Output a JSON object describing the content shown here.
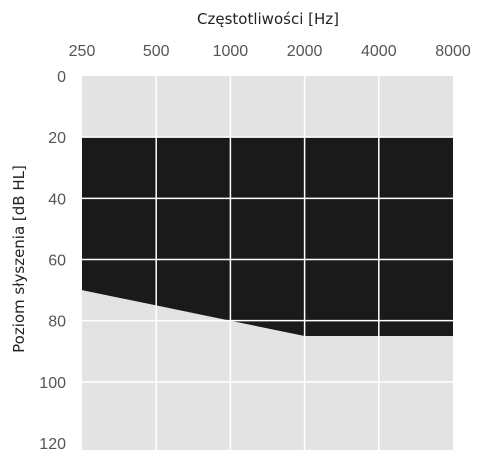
{
  "chart_data": {
    "type": "area",
    "title": "",
    "xlabel": "Częstotliwości [Hz]",
    "ylabel": "Poziom słyszenia [dB HL]",
    "x_axis_position": "top",
    "x_scale": "log2",
    "y_inverted": true,
    "x": [
      250,
      500,
      1000,
      2000,
      4000,
      8000
    ],
    "x_tick_labels": [
      "250",
      "500",
      "1000",
      "2000",
      "4000",
      "8000"
    ],
    "y_ticks": [
      0,
      20,
      40,
      60,
      80,
      100,
      120
    ],
    "ylim": [
      0,
      120
    ],
    "grid": true,
    "series": [
      {
        "upper_db": [
          20,
          20,
          20,
          20,
          20,
          20
        ],
        "lower_db": [
          70,
          75,
          80,
          85,
          85,
          85
        ]
      }
    ],
    "colors": {
      "plot_background": "#e3e3e3",
      "band_fill": "#1a1a1a",
      "grid": "#ffffff",
      "tick_text": "#555555",
      "title_text": "#222222"
    }
  }
}
